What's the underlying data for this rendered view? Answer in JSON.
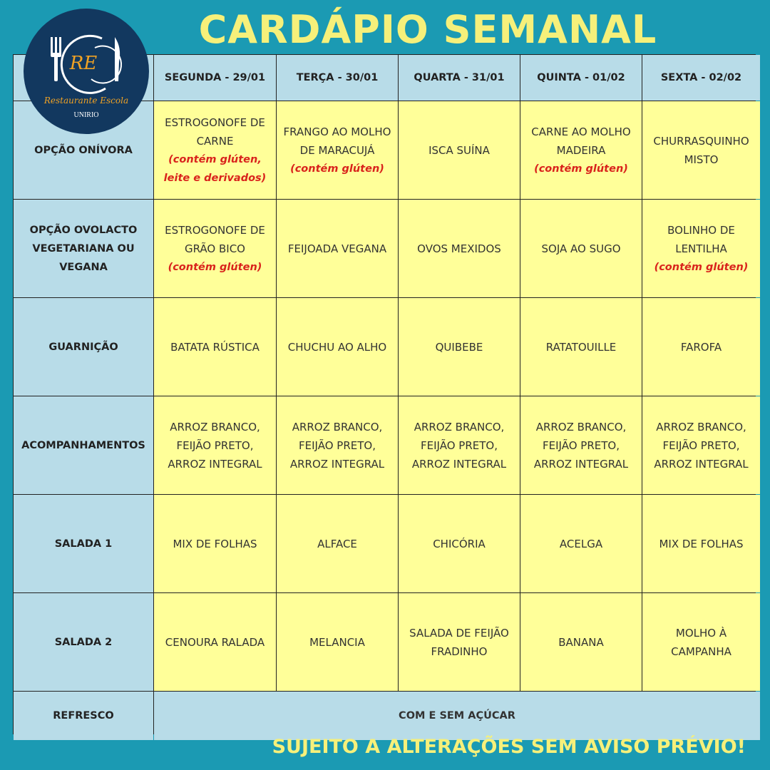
{
  "title": "CARDÁPIO SEMANAL",
  "logo": {
    "initials": "RE",
    "name": "Restaurante Escola",
    "org": "UNIRIO"
  },
  "colors": {
    "background": "#1b9ab3",
    "header": "#b8dce8",
    "cell": "#ffff99",
    "title": "#f6f07a",
    "allergen": "#d9231c",
    "logo": "#12385f"
  },
  "days": [
    "SEGUNDA - 29/01",
    "TERÇA - 30/01",
    "QUARTA - 31/01",
    "QUINTA - 01/02",
    "SEXTA - 02/02"
  ],
  "rows": [
    {
      "label": "OPÇÃO ONÍVORA",
      "items": [
        {
          "dish": "ESTROGONOFE DE CARNE",
          "note": "(contém glúten, leite e derivados)"
        },
        {
          "dish": "FRANGO AO MOLHO DE MARACUJÁ",
          "note": "(contém glúten)"
        },
        {
          "dish": "ISCA SUÍNA"
        },
        {
          "dish": "CARNE AO MOLHO MADEIRA",
          "note": "(contém glúten)"
        },
        {
          "dish": "CHURRASQUINHO MISTO"
        }
      ]
    },
    {
      "label": "OPÇÃO OVOLACTO VEGETARIANA OU VEGANA",
      "items": [
        {
          "dish": "ESTROGONOFE DE GRÃO BICO",
          "note": "(contém glúten)"
        },
        {
          "dish": "FEIJOADA VEGANA"
        },
        {
          "dish": "OVOS MEXIDOS"
        },
        {
          "dish": "SOJA AO SUGO"
        },
        {
          "dish": "BOLINHO DE LENTILHA",
          "note": "(contém glúten)"
        }
      ]
    },
    {
      "label": "GUARNIÇÃO",
      "items": [
        {
          "dish": "BATATA RÚSTICA"
        },
        {
          "dish": "CHUCHU AO ALHO"
        },
        {
          "dish": "QUIBEBE"
        },
        {
          "dish": "RATATOUILLE"
        },
        {
          "dish": "FAROFA"
        }
      ]
    },
    {
      "label": "ACOMPANHAMENTOS",
      "items": [
        {
          "dish": "ARROZ BRANCO, FEIJÃO PRETO, ARROZ INTEGRAL"
        },
        {
          "dish": "ARROZ BRANCO, FEIJÃO PRETO, ARROZ INTEGRAL"
        },
        {
          "dish": "ARROZ BRANCO, FEIJÃO PRETO, ARROZ INTEGRAL"
        },
        {
          "dish": "ARROZ BRANCO, FEIJÃO PRETO, ARROZ INTEGRAL"
        },
        {
          "dish": "ARROZ BRANCO, FEIJÃO PRETO, ARROZ INTEGRAL"
        }
      ]
    },
    {
      "label": "SALADA 1",
      "items": [
        {
          "dish": "MIX DE FOLHAS"
        },
        {
          "dish": "ALFACE"
        },
        {
          "dish": "CHICÓRIA"
        },
        {
          "dish": "ACELGA"
        },
        {
          "dish": "MIX DE FOLHAS"
        }
      ]
    },
    {
      "label": "SALADA 2",
      "items": [
        {
          "dish": "CENOURA RALADA"
        },
        {
          "dish": "MELANCIA"
        },
        {
          "dish": "SALADA DE FEIJÃO FRADINHO"
        },
        {
          "dish": "BANANA"
        },
        {
          "dish": "MOLHO À CAMPANHA"
        }
      ]
    }
  ],
  "refresco": {
    "label": "REFRESCO",
    "value": "COM E SEM AÇÚCAR"
  },
  "footer": "SUJEITO A ALTERAÇÕES SEM AVISO PRÉVIO!"
}
